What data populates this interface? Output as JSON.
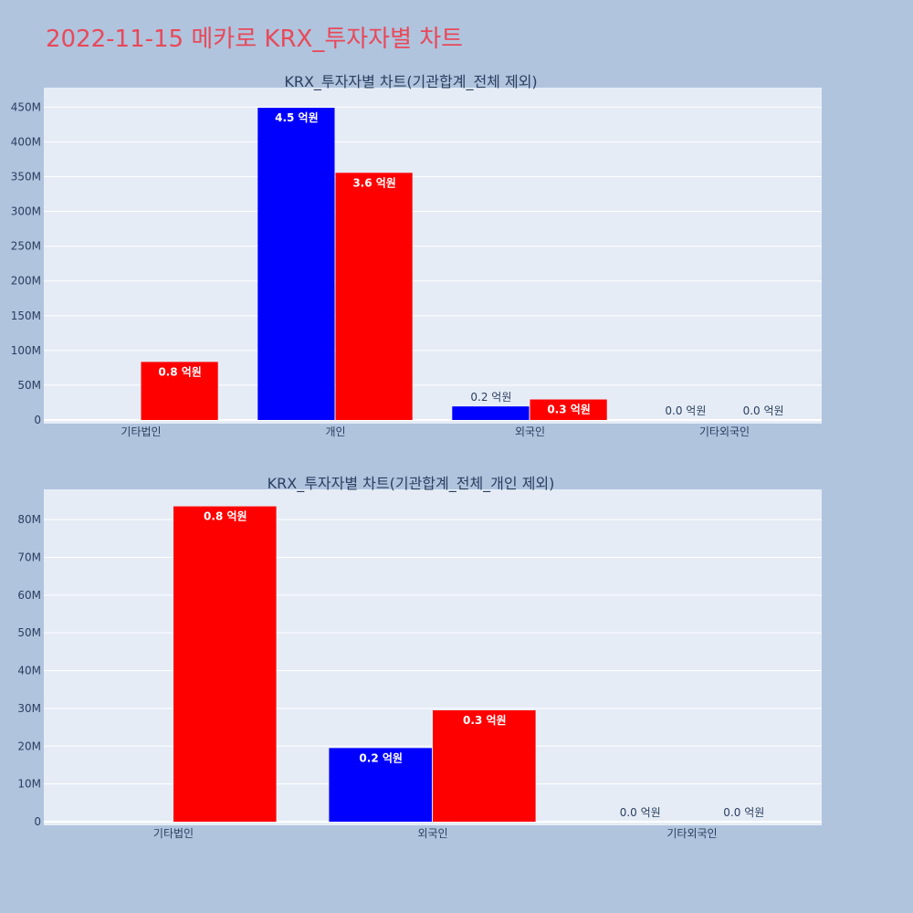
{
  "page": {
    "title": "2022-11-15 메카로 KRX_투자자별 차트"
  },
  "colors": {
    "background": "#b0c4de",
    "plot_bg": "#e5ecf6",
    "title": "#e8495a",
    "series_blue": "#0000ff",
    "series_red": "#ff0000"
  },
  "chart_data": [
    {
      "type": "bar",
      "title": "KRX_투자자별 차트(기관합계_전체 제외)",
      "categories": [
        "기타법인",
        "개인",
        "외국인",
        "기타외국인"
      ],
      "series": [
        {
          "color": "#0000ff",
          "values": [
            0,
            449000000,
            19500000,
            0
          ],
          "labels": [
            "",
            "4.5 억원",
            "0.2 억원",
            "0.0 억원"
          ]
        },
        {
          "color": "#ff0000",
          "values": [
            83500000,
            355500000,
            29500000,
            0
          ],
          "labels": [
            "0.8 억원",
            "3.6 억원",
            "0.3 억원",
            "0.0 억원"
          ]
        }
      ],
      "yticks": [
        0,
        50000000,
        100000000,
        150000000,
        200000000,
        250000000,
        300000000,
        350000000,
        400000000,
        450000000
      ],
      "ytick_labels": [
        "0",
        "50M",
        "100M",
        "150M",
        "200M",
        "250M",
        "300M",
        "350M",
        "400M",
        "450M"
      ],
      "ylim": [
        0,
        478000000
      ],
      "grid": true
    },
    {
      "type": "bar",
      "title": "KRX_투자자별 차트(기관합계_전체_개인 제외)",
      "categories": [
        "기타법인",
        "외국인",
        "기타외국인"
      ],
      "series": [
        {
          "color": "#0000ff",
          "values": [
            0,
            19500000,
            0
          ],
          "labels": [
            "",
            "0.2 억원",
            "0.0 억원"
          ]
        },
        {
          "color": "#ff0000",
          "values": [
            83500000,
            29500000,
            0
          ],
          "labels": [
            "0.8 억원",
            "0.3 억원",
            "0.0 억원"
          ]
        }
      ],
      "yticks": [
        0,
        10000000,
        20000000,
        30000000,
        40000000,
        50000000,
        60000000,
        70000000,
        80000000
      ],
      "ytick_labels": [
        "0",
        "10M",
        "20M",
        "30M",
        "40M",
        "50M",
        "60M",
        "70M",
        "80M"
      ],
      "ylim": [
        0,
        88000000
      ],
      "grid": true
    }
  ]
}
